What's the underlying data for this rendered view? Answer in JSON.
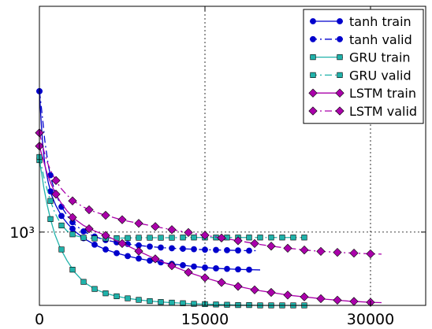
{
  "chart_data": {
    "type": "line",
    "title": "",
    "xlabel": "",
    "ylabel": "",
    "xlim": [
      0,
      35000
    ],
    "y_scale": "log",
    "ylim": [
      720,
      2750
    ],
    "grid": true,
    "legend_position": "top-right",
    "x_ticks": [
      0,
      15000,
      30000
    ],
    "x_tick_labels": [
      "0",
      "15000",
      "30000"
    ],
    "y_ticks": [
      1000
    ],
    "y_tick_labels": [
      "10³"
    ],
    "series": [
      {
        "name": "tanh train",
        "color": "#0000cc",
        "linestyle": "solid",
        "marker": "circle",
        "line": {
          "x": [
            0,
            150,
            300,
            500,
            800,
            1100,
            1500,
            2000,
            2600,
            3300,
            4100,
            5000,
            6000,
            7000,
            8000,
            9000,
            10000,
            11000,
            12000,
            13000,
            14000,
            15000,
            16000,
            17000,
            18000,
            19000,
            20000
          ],
          "y": [
            1880,
            1650,
            1480,
            1350,
            1250,
            1180,
            1125,
            1075,
            1035,
            1000,
            970,
            945,
            925,
            910,
            898,
            888,
            880,
            873,
            867,
            862,
            857,
            853,
            850,
            848,
            846,
            845,
            844
          ]
        },
        "markers": {
          "x": [
            0,
            1000,
            2000,
            3000,
            4000,
            5000,
            6000,
            7000,
            8000,
            9000,
            10000,
            11000,
            12000,
            13000,
            14000,
            15000,
            16000,
            17000,
            18000,
            19000
          ],
          "y": [
            1880,
            1200,
            1075,
            1015,
            973,
            945,
            925,
            910,
            898,
            888,
            880,
            873,
            867,
            862,
            857,
            853,
            850,
            848,
            846,
            845
          ]
        }
      },
      {
        "name": "tanh valid",
        "color": "#0000cc",
        "linestyle": "dashdot",
        "marker": "circle",
        "line": {
          "x": [
            0,
            150,
            300,
            500,
            800,
            1100,
            1500,
            2000,
            2600,
            3300,
            4100,
            5000,
            6000,
            7000,
            8000,
            9000,
            10000,
            11000,
            12000,
            13000,
            14000,
            15000,
            16000,
            17000,
            18000,
            19000,
            19600
          ],
          "y": [
            1880,
            1770,
            1650,
            1500,
            1350,
            1260,
            1185,
            1120,
            1070,
            1030,
            1000,
            980,
            965,
            955,
            948,
            942,
            937,
            933,
            930,
            928,
            926,
            924,
            923,
            922,
            921,
            920,
            920
          ]
        },
        "markers": {
          "x": [
            0,
            1000,
            2000,
            3000,
            4000,
            5000,
            6000,
            7000,
            8000,
            9000,
            10000,
            11000,
            12000,
            13000,
            14000,
            15000,
            16000,
            17000,
            18000,
            19000
          ],
          "y": [
            1880,
            1290,
            1120,
            1045,
            1003,
            980,
            965,
            955,
            948,
            942,
            937,
            933,
            930,
            928,
            926,
            924,
            923,
            922,
            921,
            920
          ]
        }
      },
      {
        "name": "GRU train",
        "color": "#20b2aa",
        "linestyle": "solid",
        "marker": "square",
        "line": {
          "x": [
            0,
            200,
            400,
            700,
            1000,
            1400,
            1900,
            2500,
            3200,
            4000,
            5000,
            6000,
            7000,
            8000,
            9000,
            10000,
            11000,
            12000,
            13000,
            14000,
            15000,
            16000,
            17000,
            18000,
            19000,
            20000,
            21000,
            22000,
            23000,
            24000,
            24500
          ],
          "y": [
            1380,
            1300,
            1220,
            1130,
            1060,
            990,
            930,
            880,
            835,
            800,
            775,
            760,
            750,
            743,
            738,
            734,
            731,
            729,
            727,
            725,
            724,
            723,
            722,
            721,
            721,
            720,
            720,
            720,
            720,
            720,
            720
          ]
        },
        "markers": {
          "x": [
            0,
            1000,
            2000,
            3000,
            4000,
            5000,
            6000,
            7000,
            8000,
            9000,
            10000,
            11000,
            12000,
            13000,
            14000,
            15000,
            16000,
            17000,
            18000,
            19000,
            20000,
            21000,
            22000,
            23000,
            24000
          ],
          "y": [
            1380,
            1060,
            925,
            845,
            800,
            775,
            760,
            750,
            743,
            738,
            734,
            731,
            729,
            727,
            725,
            724,
            723,
            722,
            721,
            721,
            720,
            720,
            720,
            720,
            720
          ]
        }
      },
      {
        "name": "GRU valid",
        "color": "#20b2aa",
        "linestyle": "dashdot",
        "marker": "square",
        "line": {
          "x": [
            0,
            200,
            400,
            700,
            1000,
            1400,
            1900,
            2500,
            3200,
            4000,
            5000,
            6000,
            7000,
            8000,
            9000,
            10000,
            11000,
            12000,
            13000,
            14000,
            15000,
            16000,
            17000,
            18000,
            19000,
            20000,
            21000,
            22000,
            23000,
            24000,
            24500
          ],
          "y": [
            1400,
            1340,
            1280,
            1210,
            1150,
            1090,
            1040,
            1005,
            985,
            975,
            972,
            972,
            973,
            974,
            975,
            975,
            975,
            975,
            976,
            976,
            976,
            976,
            976,
            976,
            976,
            976,
            976,
            976,
            976,
            976,
            976
          ]
        },
        "markers": {
          "x": [
            0,
            1000,
            2000,
            3000,
            4000,
            5000,
            6000,
            7000,
            8000,
            9000,
            10000,
            11000,
            12000,
            13000,
            14000,
            15000,
            16000,
            17000,
            18000,
            19000,
            20000,
            21000,
            22000,
            23000,
            24000
          ],
          "y": [
            1400,
            1150,
            1030,
            990,
            975,
            972,
            972,
            973,
            974,
            975,
            975,
            975,
            975,
            976,
            976,
            976,
            976,
            976,
            976,
            976,
            976,
            976,
            976,
            976,
            976
          ]
        }
      },
      {
        "name": "LSTM train",
        "color": "#aa00aa",
        "linestyle": "solid",
        "marker": "diamond",
        "line": {
          "x": [
            0,
            200,
            400,
            700,
            1000,
            1400,
            1900,
            2500,
            3200,
            4000,
            5000,
            6000,
            7000,
            8000,
            9000,
            10000,
            11000,
            12000,
            13000,
            14000,
            15000,
            16000,
            17000,
            18000,
            19000,
            20000,
            21000,
            22000,
            23000,
            24000,
            25000,
            26000,
            27000,
            28000,
            29000,
            30000,
            31000
          ],
          "y": [
            1470,
            1420,
            1370,
            1300,
            1250,
            1195,
            1145,
            1100,
            1060,
            1030,
            1005,
            985,
            962,
            940,
            918,
            897,
            878,
            860,
            843,
            828,
            815,
            803,
            793,
            784,
            776,
            769,
            763,
            757,
            752,
            748,
            744,
            740,
            737,
            734,
            732,
            730,
            729
          ]
        },
        "markers": {
          "x": [
            0,
            1500,
            3000,
            4500,
            6000,
            7500,
            9000,
            10500,
            12000,
            13500,
            15000,
            16500,
            18000,
            19500,
            21000,
            22500,
            24000,
            25500,
            27000,
            28500,
            30000
          ],
          "y": [
            1470,
            1185,
            1068,
            1015,
            985,
            950,
            918,
            887,
            860,
            835,
            815,
            798,
            784,
            772,
            763,
            754,
            748,
            742,
            737,
            733,
            730
          ]
        }
      },
      {
        "name": "LSTM valid",
        "color": "#aa00aa",
        "linestyle": "dashdot",
        "marker": "diamond",
        "line": {
          "x": [
            0,
            200,
            400,
            700,
            1000,
            1400,
            1900,
            2500,
            3200,
            4000,
            5000,
            6000,
            7000,
            8000,
            9000,
            10000,
            11000,
            12000,
            13000,
            14000,
            15000,
            16000,
            17000,
            18000,
            19000,
            20000,
            21000,
            22000,
            23000,
            24000,
            25000,
            26000,
            27000,
            28000,
            29000,
            30000,
            31000
          ],
          "y": [
            1560,
            1500,
            1440,
            1370,
            1320,
            1270,
            1220,
            1180,
            1145,
            1118,
            1095,
            1078,
            1063,
            1050,
            1040,
            1030,
            1020,
            1011,
            1002,
            994,
            986,
            978,
            970,
            962,
            954,
            946,
            939,
            933,
            928,
            923,
            919,
            916,
            913,
            911,
            909,
            907,
            906
          ]
        },
        "markers": {
          "x": [
            0,
            1500,
            3000,
            4500,
            6000,
            7500,
            9000,
            10500,
            12000,
            13500,
            15000,
            16500,
            18000,
            19500,
            21000,
            22500,
            24000,
            25500,
            27000,
            28500,
            30000
          ],
          "y": [
            1560,
            1260,
            1150,
            1105,
            1078,
            1057,
            1040,
            1025,
            1011,
            998,
            986,
            974,
            962,
            950,
            939,
            930,
            923,
            917,
            913,
            910,
            907
          ]
        }
      }
    ]
  }
}
